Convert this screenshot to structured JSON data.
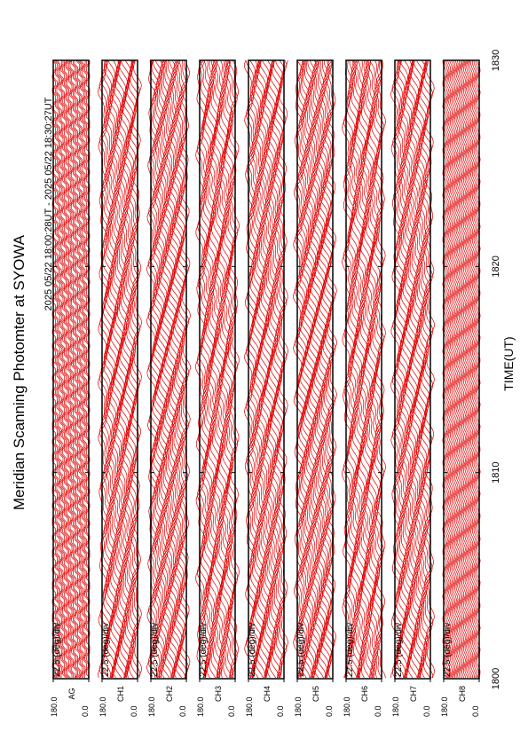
{
  "chart_data": {
    "type": "line",
    "title": "Meridian Scanning Photomter at SYOWA",
    "subtitle": "2025 05/22 18:00:28UT - 2025 05/22 18:30:27UT",
    "xlabel": "TIME(UT)",
    "xlim": [
      1800,
      1830
    ],
    "xticks": [
      1800,
      1810,
      1820,
      1830
    ],
    "ylim": [
      0,
      180
    ],
    "yticks": [
      {
        "value": 0,
        "label": "0.0"
      },
      {
        "value": 180,
        "label": "180.0"
      }
    ],
    "scale_label": "22.5 (deg)/div",
    "color": "#e00000",
    "panels": [
      {
        "name": "AG"
      },
      {
        "name": "CH1"
      },
      {
        "name": "CH2"
      },
      {
        "name": "CH3"
      },
      {
        "name": "CH4"
      },
      {
        "name": "CH5"
      },
      {
        "name": "CH6"
      },
      {
        "name": "CH7"
      },
      {
        "name": "CH8"
      }
    ]
  }
}
